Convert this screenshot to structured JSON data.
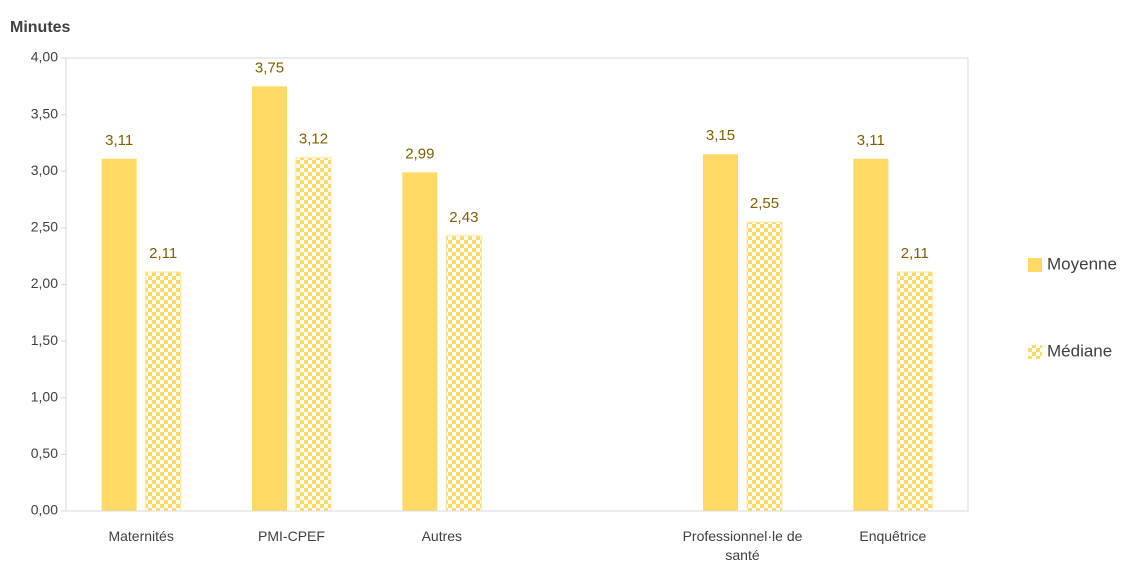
{
  "chart_data": {
    "type": "bar",
    "title": "Minutes",
    "categories": [
      "Maternités",
      "PMI-CPEF",
      "Autres",
      null,
      "Professionnel·le de santé",
      "Enquêtrice"
    ],
    "series": [
      {
        "name": "Moyenne",
        "color": "#ffd966",
        "pattern": "solid",
        "values": [
          3.11,
          3.75,
          2.99,
          null,
          3.15,
          3.11
        ],
        "value_labels": [
          "3,11",
          "3,75",
          "2,99",
          null,
          "3,15",
          "3,11"
        ]
      },
      {
        "name": "Médiane",
        "color": "#ffd966",
        "pattern": "checker",
        "values": [
          2.11,
          3.12,
          2.43,
          null,
          2.55,
          2.11
        ],
        "value_labels": [
          "2,11",
          "3,12",
          "2,43",
          null,
          "2,55",
          "2,11"
        ]
      }
    ],
    "ylim": [
      0,
      4
    ],
    "yticks": [
      {
        "value": 0,
        "label": "0,00"
      },
      {
        "value": 0.5,
        "label": "0,50"
      },
      {
        "value": 1,
        "label": "1,00"
      },
      {
        "value": 1.5,
        "label": "1,50"
      },
      {
        "value": 2,
        "label": "2,00"
      },
      {
        "value": 2.5,
        "label": "2,50"
      },
      {
        "value": 3,
        "label": "3,00"
      },
      {
        "value": 3.5,
        "label": "3,50"
      },
      {
        "value": 4,
        "label": "4,00"
      }
    ],
    "grid": false,
    "legend": "right"
  }
}
